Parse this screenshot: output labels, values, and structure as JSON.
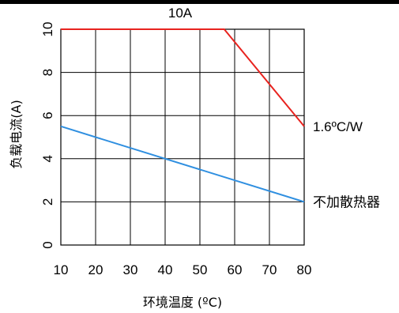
{
  "chart_data": {
    "type": "line",
    "xlabel": "环境温度 (ºC)",
    "ylabel": "负载电流(A)",
    "xlim": [
      10,
      80
    ],
    "ylim": [
      0,
      10
    ],
    "x_ticks": [
      "10",
      "20",
      "30",
      "40",
      "50",
      "60",
      "70",
      "80"
    ],
    "y_ticks": [
      "0",
      "2",
      "4",
      "6",
      "8",
      "10"
    ],
    "grid": true,
    "annotations": [
      {
        "text": "10A",
        "placement": "top"
      }
    ],
    "colors": {
      "red": "#e8231f",
      "blue": "#2f8fe0"
    },
    "series": [
      {
        "name": "1.6ºC/W",
        "color": "#e8231f",
        "x": [
          10,
          57,
          80
        ],
        "y": [
          10,
          10,
          5.5
        ]
      },
      {
        "name": "不加散热器",
        "color": "#2f8fe0",
        "x": [
          10,
          80
        ],
        "y": [
          5.5,
          2.0
        ]
      }
    ]
  }
}
